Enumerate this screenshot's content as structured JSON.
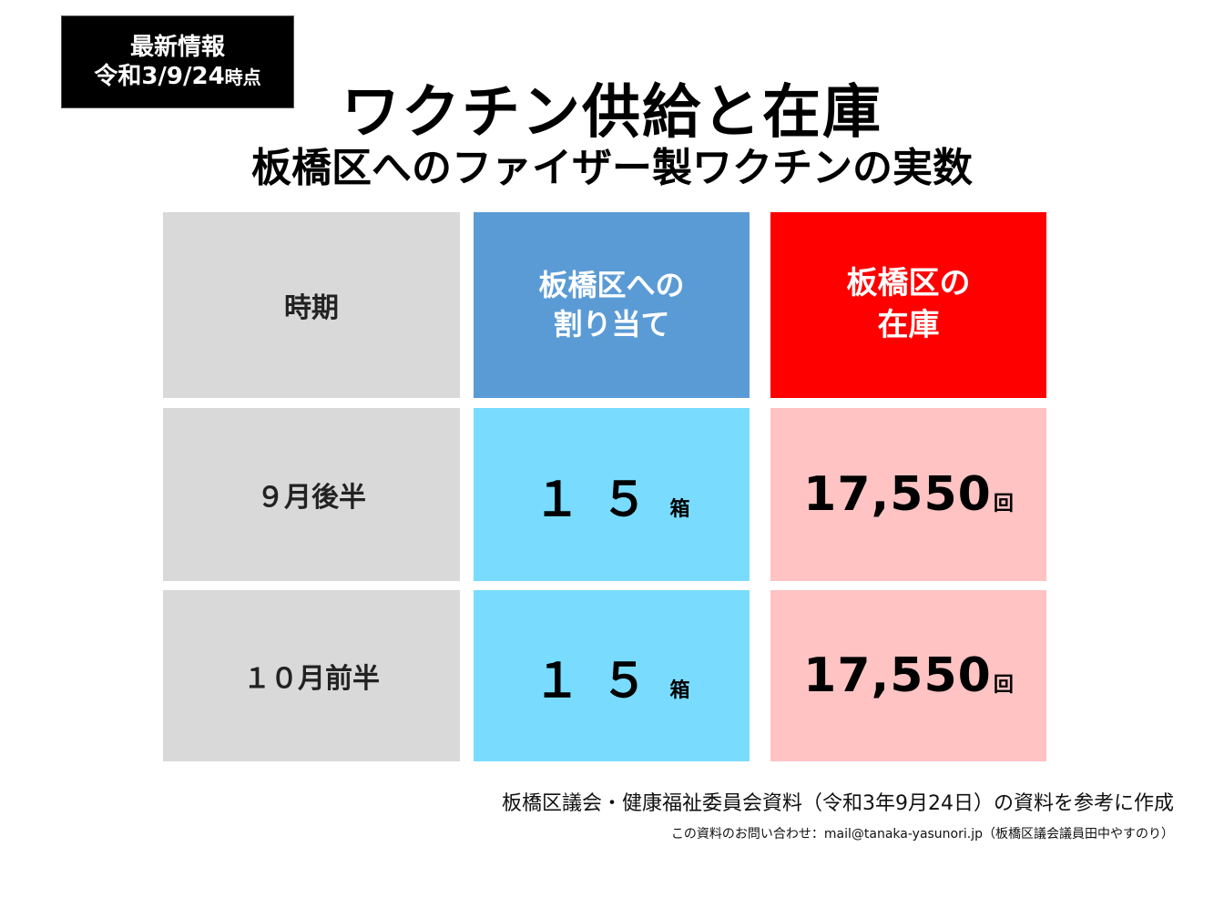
{
  "badge": {
    "line1": "最新情報",
    "line2_date": "令和3/9/24",
    "line2_suffix": "時点"
  },
  "title": "ワクチン供給と在庫",
  "subtitle": "板橋区へのファイザー製ワクチンの実数",
  "table": {
    "headers": {
      "period": "時期",
      "allocation_line1": "板橋区への",
      "allocation_line2": "割り当て",
      "stock_line1": "板橋区の",
      "stock_line2": "在庫"
    },
    "rows": [
      {
        "period": "９月後半",
        "allocation": "１５",
        "allocation_unit": "箱",
        "stock": "17,550",
        "stock_unit": "回"
      },
      {
        "period": "１０月前半",
        "allocation": "１５",
        "allocation_unit": "箱",
        "stock": "17,550",
        "stock_unit": "回"
      }
    ]
  },
  "footer": {
    "source": "板橋区議会・健康福祉委員会資料（令和3年9月24日）の資料を参考に作成",
    "contact": "この資料のお問い合わせ：mail@tanaka-yasunori.jp（板橋区議会議員田中やすのり）"
  },
  "colors": {
    "header_allocation": "#5b9bd5",
    "header_stock": "#ff0000",
    "cell_allocation": "#79dcff",
    "cell_stock": "#ffc3c3",
    "cell_period": "#d9d9d9"
  }
}
